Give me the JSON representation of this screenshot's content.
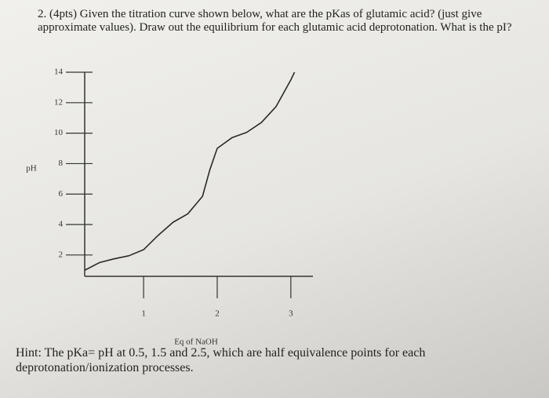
{
  "question": "2. (4pts) Given the titration curve shown below, what are the pKas of glutamic acid? (just give approximate values). Draw out the equilibrium for each glutamic acid deprotonation. What is the pI?",
  "chart_data": {
    "type": "line",
    "ylabel": "pH",
    "xlabel": "Eq of NaOH",
    "x": [
      0.2,
      0.4,
      0.6,
      0.8,
      1.0,
      1.2,
      1.4,
      1.6,
      1.8,
      1.9,
      2.0,
      2.2,
      2.4,
      2.6,
      2.8,
      3.0,
      3.05
    ],
    "values": [
      1.0,
      1.5,
      1.75,
      1.95,
      2.35,
      3.3,
      4.15,
      4.7,
      5.85,
      7.6,
      9.0,
      9.7,
      10.05,
      10.7,
      11.75,
      13.5,
      14.0
    ],
    "color": "#2a2a2a",
    "xlim": [
      0.2,
      3.3
    ],
    "ylim": [
      0.6,
      14
    ],
    "xticks": [
      1,
      2,
      3
    ],
    "yticks": [
      2,
      4,
      6,
      8,
      10,
      12,
      14
    ]
  },
  "hint": "Hint: The pKa= pH at 0.5, 1.5 and 2.5, which are half equivalence points for each deprotonation/ionization processes."
}
